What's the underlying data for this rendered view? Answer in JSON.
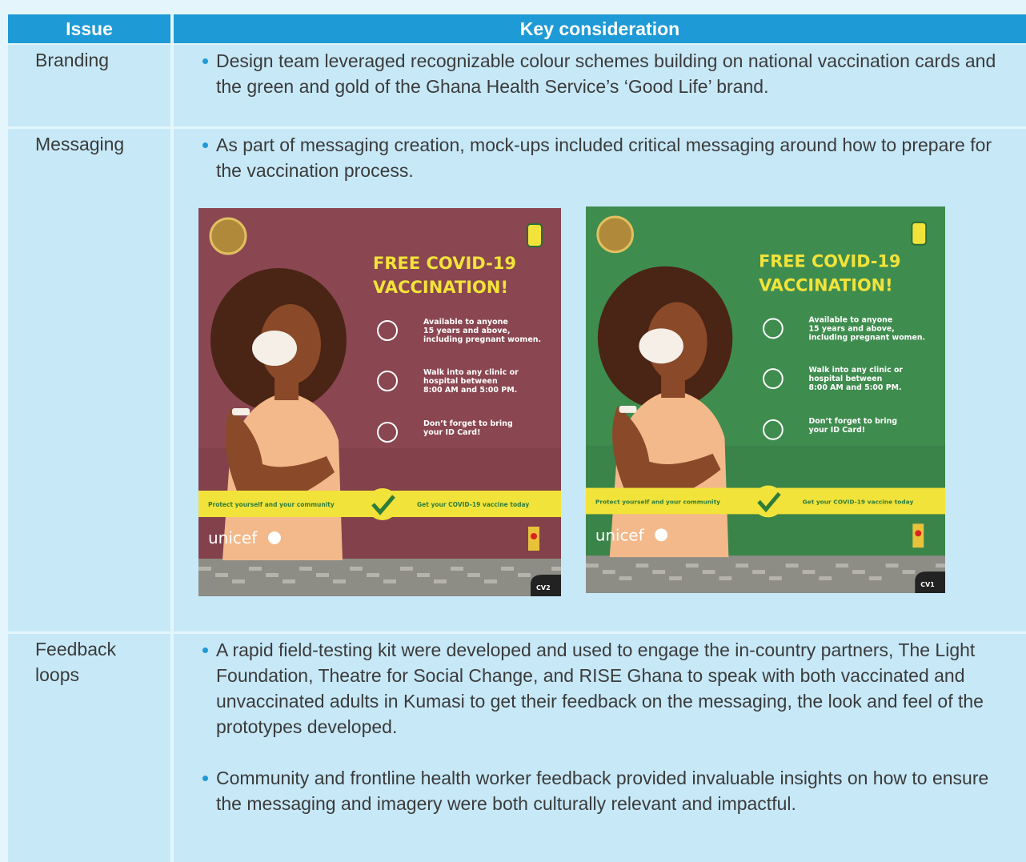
{
  "table": {
    "header": [
      "Issue",
      "Key consideration"
    ],
    "rows": [
      {
        "issue": "Branding",
        "points": [
          "Design team leveraged recognizable colour schemes building on national vaccination cards and the green and gold of the Ghana Health Service’s ‘Good Life’ brand."
        ]
      },
      {
        "issue": "Messaging",
        "points": [
          "As part of messaging creation, mock-ups included critical messaging around how to prepare for the vaccination process."
        ]
      },
      {
        "issue": "Feedback loops",
        "points": [
          "A rapid field-testing kit were developed and used to engage the in-country partners, The Light Foundation, Theatre for Social Change, and RISE Ghana to speak with both vaccinated and unvaccinated adults in Kumasi to get their feedback on the messaging, the look and feel of the prototypes developed.",
          "Community and frontline health worker feedback provided invaluable insights on how to ensure the messaging and imagery were both culturally relevant and impactful."
        ]
      }
    ]
  },
  "posters": [
    {
      "title": [
        "FREE COVID-19",
        "VACCINATION!"
      ],
      "items": [
        [
          "Available to anyone",
          "15 years and above,",
          "including pregnant women."
        ],
        [
          "Walk into any clinic or",
          "hospital between",
          "8:00 AM and 5:00 PM."
        ],
        [
          "Don’t forget to bring",
          "your ID Card!"
        ]
      ],
      "banner": [
        "Protect yourself and your community",
        "Get your COVID-19 vaccine today"
      ],
      "brand": "unicef",
      "tag": "CV2"
    },
    {
      "title": [
        "FREE COVID-19",
        "VACCINATION!"
      ],
      "items": [
        [
          "Available to anyone",
          "15 years and above,",
          "including pregnant women."
        ],
        [
          "Walk into any clinic or",
          "hospital between",
          "8:00 AM and 5:00 PM."
        ],
        [
          "Don’t forget to bring",
          "your ID Card!"
        ]
      ],
      "banner": [
        "Protect yourself and your community",
        "Get your COVID-19 vaccine today"
      ],
      "brand": "unicef",
      "tag": "CV1"
    }
  ]
}
